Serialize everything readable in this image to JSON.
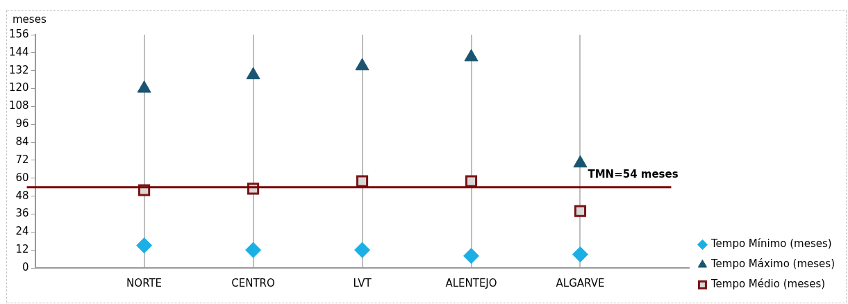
{
  "chart_data": {
    "type": "scatter",
    "ylabel": "meses",
    "categories": [
      null,
      "NORTE",
      "CENTRO",
      "LVT",
      "ALENTEJO",
      "ALGARVE",
      null
    ],
    "series": [
      {
        "name": "Tempo Mínimo (meses)",
        "color": "#1ab0e6",
        "marker": "diamond",
        "values": [
          null,
          15,
          12,
          12,
          8,
          9,
          null
        ]
      },
      {
        "name": "Tempo Máximo (meses)",
        "color": "#1a5470",
        "marker": "triangle",
        "values": [
          null,
          120,
          129,
          135,
          141,
          70,
          null
        ]
      },
      {
        "name": "Tempo Médio (meses)",
        "color": "#7b1315",
        "marker": "square",
        "values": [
          null,
          52,
          53,
          58,
          58,
          38,
          null
        ]
      }
    ],
    "ylim": [
      0,
      156
    ],
    "yticks": [
      0,
      12,
      24,
      36,
      48,
      60,
      72,
      84,
      96,
      108,
      120,
      132,
      144,
      156
    ],
    "grid": "x",
    "legend": "right",
    "ref_lines": [
      {
        "axis": "y",
        "value": 54,
        "label": "TMN=54 meses",
        "color": "#7b0000"
      }
    ]
  }
}
